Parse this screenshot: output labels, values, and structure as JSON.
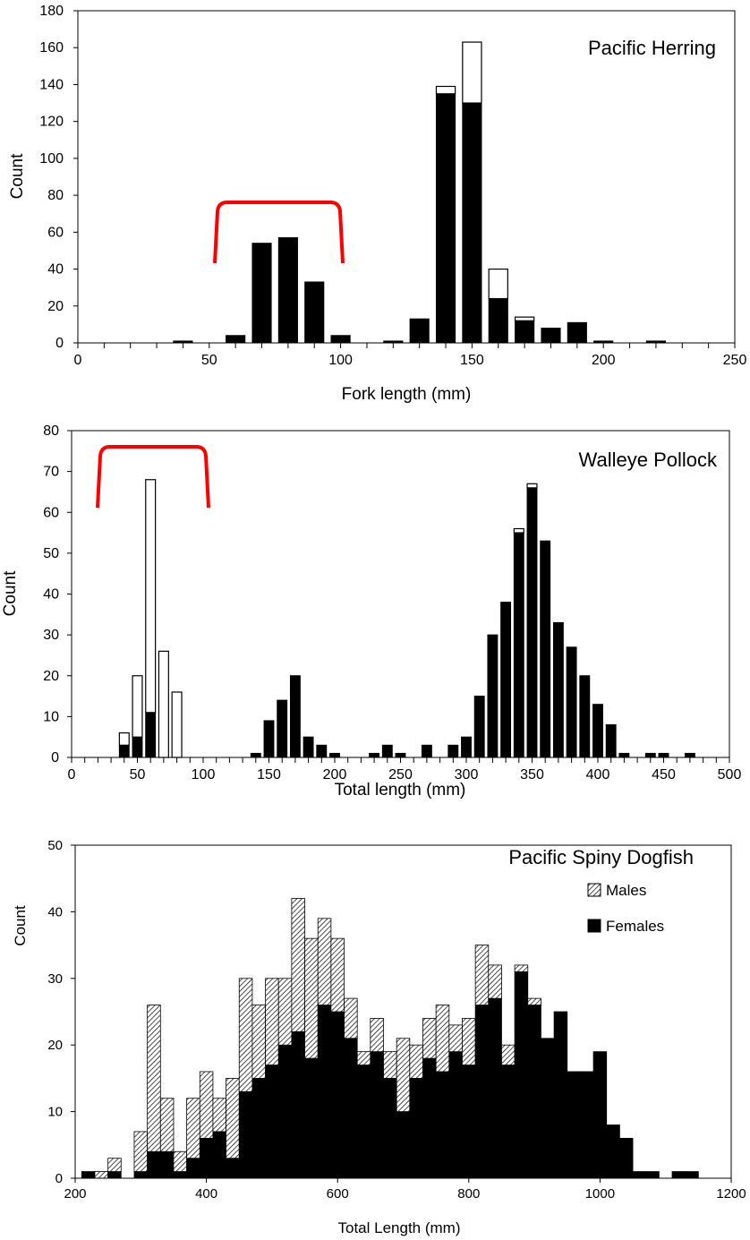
{
  "chart_data": [
    {
      "type": "bar",
      "title": "Pacific Herring",
      "xlabel": "Fork length (mm)",
      "ylabel": "Count",
      "xlim": [
        0,
        250
      ],
      "ylim": [
        0,
        180
      ],
      "xticks": [
        0,
        50,
        100,
        150,
        200,
        250
      ],
      "yticks": [
        0,
        20,
        40,
        60,
        80,
        100,
        120,
        140,
        160,
        180
      ],
      "minor_xtick_step": 10,
      "bin_width": 10,
      "bracket_color": "#ff0000",
      "bracket_range": [
        55,
        100
      ],
      "bracket_level": 76,
      "series": [
        {
          "style": "solid",
          "x": [
            40,
            60,
            70,
            80,
            90,
            100,
            120,
            130,
            140,
            150,
            160,
            170,
            180,
            190,
            200,
            220
          ],
          "values": [
            1,
            4,
            54,
            57,
            33,
            4,
            1,
            13,
            135,
            130,
            24,
            12,
            8,
            11,
            1,
            1
          ]
        },
        {
          "style": "open",
          "x": [
            140,
            150,
            160,
            170
          ],
          "values": [
            4,
            33,
            16,
            2
          ]
        }
      ]
    },
    {
      "type": "bar",
      "title": "Walleye Pollock",
      "xlabel": "Total length (mm)",
      "ylabel": "Count",
      "xlim": [
        0,
        500
      ],
      "ylim": [
        0,
        80
      ],
      "xticks": [
        0,
        50,
        100,
        150,
        200,
        250,
        300,
        350,
        400,
        450,
        500
      ],
      "yticks": [
        0,
        10,
        20,
        30,
        40,
        50,
        60,
        70,
        80
      ],
      "minor_xtick_step": 10,
      "bin_width": 10,
      "bracket_color": "#ff0000",
      "bracket_range": [
        20,
        102
      ],
      "bracket_level": 75.5,
      "series": [
        {
          "style": "solid",
          "x": [
            40,
            50,
            60,
            140,
            150,
            160,
            170,
            180,
            190,
            200,
            230,
            240,
            250,
            270,
            290,
            300,
            310,
            320,
            330,
            340,
            350,
            360,
            370,
            380,
            390,
            400,
            410,
            420,
            440,
            450,
            470
          ],
          "values": [
            3,
            5,
            11,
            1,
            9,
            14,
            20,
            5,
            3,
            1,
            1,
            3,
            1,
            3,
            3,
            5,
            15,
            30,
            38,
            55,
            66,
            53,
            33,
            27,
            20,
            13,
            8,
            1,
            1,
            1,
            1
          ]
        },
        {
          "style": "open",
          "x": [
            40,
            50,
            60,
            70,
            80,
            340,
            350
          ],
          "values": [
            3,
            15,
            57,
            26,
            16,
            1,
            1
          ]
        }
      ]
    },
    {
      "type": "bar",
      "title": "Pacific Spiny Dogfish",
      "xlabel": "Total Length (mm)",
      "ylabel": "Count",
      "xlim": [
        200,
        1200
      ],
      "ylim": [
        0,
        50
      ],
      "xticks": [
        200,
        400,
        600,
        800,
        1000,
        1200
      ],
      "yticks": [
        0,
        10,
        20,
        30,
        40,
        50
      ],
      "bin_width": 20,
      "legend": {
        "position": "right",
        "entries": [
          {
            "name": "Males",
            "style": "hatched"
          },
          {
            "name": "Females",
            "style": "solid"
          }
        ]
      },
      "x": [
        220,
        240,
        260,
        280,
        300,
        320,
        340,
        360,
        380,
        400,
        420,
        440,
        460,
        480,
        500,
        520,
        540,
        560,
        580,
        600,
        620,
        640,
        660,
        680,
        700,
        720,
        740,
        760,
        780,
        800,
        820,
        840,
        860,
        880,
        900,
        920,
        940,
        960,
        980,
        1000,
        1020,
        1040,
        1060,
        1080,
        1120,
        1140
      ],
      "series": [
        {
          "name": "Females",
          "values": [
            1,
            0,
            1,
            0,
            1,
            4,
            4,
            1,
            3,
            6,
            7,
            3,
            13,
            15,
            17,
            20,
            22,
            18,
            26,
            25,
            21,
            17,
            19,
            15,
            10,
            15,
            18,
            16,
            19,
            17,
            26,
            27,
            17,
            31,
            26,
            21,
            25,
            16,
            16,
            19,
            8,
            6,
            1,
            1,
            1,
            1
          ]
        },
        {
          "name": "Males",
          "values": [
            0,
            1,
            2,
            0,
            6,
            22,
            8,
            3,
            9,
            10,
            5,
            12,
            17,
            11,
            13,
            10,
            20,
            18,
            13,
            11,
            6,
            2,
            5,
            4,
            11,
            5,
            6,
            10,
            4,
            7,
            9,
            5,
            3,
            1,
            1,
            0,
            0,
            0,
            0,
            0,
            0,
            0,
            0,
            0,
            0,
            0
          ]
        }
      ]
    }
  ]
}
